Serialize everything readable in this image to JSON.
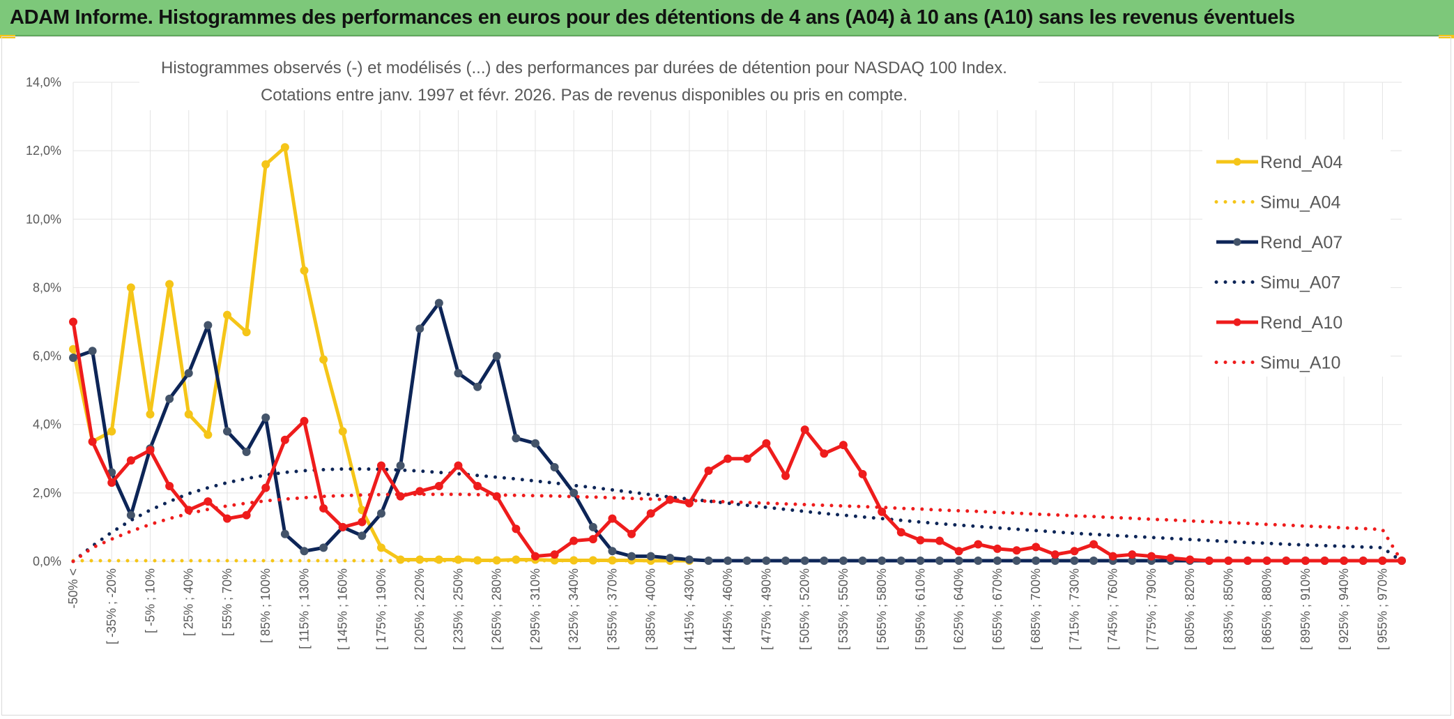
{
  "header": {
    "title": "ADAM Informe. Histogrammes des performances en euros pour des détentions de 4 ans (A04) à 10 ans (A10) sans les revenus éventuels"
  },
  "chart_data": {
    "type": "line",
    "subtitle": [
      "Histogrammes observés (-) et modélisés (...) des performances par durées de détention pour NASDAQ 100 Index.",
      "Cotations entre janv. 1997 et févr. 2026. Pas de revenus disponibles ou pris en compte."
    ],
    "ylim": [
      0,
      14
    ],
    "yticks": [
      "0,0%",
      "2,0%",
      "4,0%",
      "6,0%",
      "8,0%",
      "10,0%",
      "12,0%",
      "14,0%"
    ],
    "xticks": [
      "-50% <",
      "[ -35% ; -20%",
      "[ -5% ; 10%",
      "[ 25% ; 40%",
      "[ 55% ; 70%",
      "[ 85% ; 100%",
      "[ 115% ; 130%",
      "[ 145% ; 160%",
      "[ 175% ; 190%",
      "[ 205% ; 220%",
      "[ 235% ; 250%",
      "[ 265% ; 280%",
      "[ 295% ; 310%",
      "[ 325% ; 340%",
      "[ 355% ; 370%",
      "[ 385% ; 400%",
      "[ 415% ; 430%",
      "[ 445% ; 460%",
      "[ 475% ; 490%",
      "[ 505% ; 520%",
      "[ 535% ; 550%",
      "[ 565% ; 580%",
      "[ 595% ; 610%",
      "[ 625% ; 640%",
      "[ 655% ; 670%",
      "[ 685% ; 700%",
      "[ 715% ; 730%",
      "[ 745% ; 760%",
      "[ 775% ; 790%",
      "[ 805% ; 820%",
      "[ 835% ; 850%",
      "[ 865% ; 880%",
      "[ 895% ; 910%",
      "[ 925% ; 940%",
      "[ 955% ; 970%"
    ],
    "grid": true,
    "legend_position": "right",
    "series": [
      {
        "name": "Rend_A04",
        "style": "solid",
        "color": "#f5c518",
        "values": [
          6.2,
          3.5,
          3.8,
          8.0,
          4.3,
          8.1,
          4.3,
          3.7,
          7.2,
          6.7,
          11.6,
          12.1,
          8.5,
          5.9,
          3.8,
          1.5,
          0.4,
          0.05,
          0.05,
          0.05,
          0.05,
          0.03,
          0.03,
          0.05,
          0.05,
          0.03,
          0.03,
          0.03,
          0.03,
          0.03,
          0.02,
          0.02,
          0.02
        ]
      },
      {
        "name": "Simu_A04",
        "style": "dotted",
        "color": "#f5c518",
        "values": [
          0.02,
          0.02,
          0.02,
          0.02,
          0.02,
          0.02,
          0.02,
          0.02,
          0.02,
          0.02,
          0.02,
          0.02,
          0.02,
          0.02,
          0.02,
          0.02,
          0.02,
          0.02,
          0.02,
          0.02,
          0.02,
          0.02,
          0.02,
          0.02,
          0.02,
          0.02,
          0.02,
          0.02,
          0.02,
          0.02,
          0.02,
          0.02,
          0.02
        ]
      },
      {
        "name": "Rend_A07",
        "style": "solid",
        "color": "#0d2557",
        "values": [
          5.95,
          6.15,
          2.6,
          1.35,
          3.3,
          4.75,
          5.5,
          6.9,
          3.8,
          3.2,
          4.2,
          0.8,
          0.3,
          0.4,
          1.0,
          0.75,
          1.4,
          2.8,
          6.8,
          7.55,
          5.5,
          5.1,
          6.0,
          3.6,
          3.45,
          2.75,
          2.0,
          1.0,
          0.3,
          0.15,
          0.15,
          0.1,
          0.05,
          0.02,
          0.02,
          0.02,
          0.02,
          0.02,
          0.02,
          0.02,
          0.02,
          0.02,
          0.02,
          0.02,
          0.02,
          0.02,
          0.02,
          0.02,
          0.02,
          0.02,
          0.02,
          0.02,
          0.02,
          0.02,
          0.02,
          0.02,
          0.02,
          0.02,
          0.02,
          0.02,
          0.02,
          0.02,
          0.02,
          0.02,
          0.02,
          0.02,
          0.02,
          0.02,
          0.02,
          0.02
        ]
      },
      {
        "name": "Simu_A07",
        "style": "dotted",
        "color": "#0d2557",
        "values": [
          0.0,
          0.45,
          0.85,
          1.2,
          1.5,
          1.75,
          1.98,
          2.15,
          2.3,
          2.42,
          2.52,
          2.6,
          2.65,
          2.68,
          2.7,
          2.7,
          2.69,
          2.67,
          2.64,
          2.6,
          2.56,
          2.51,
          2.46,
          2.41,
          2.35,
          2.29,
          2.22,
          2.16,
          2.09,
          2.02,
          1.95,
          1.88,
          1.82,
          1.76,
          1.7,
          1.64,
          1.58,
          1.52,
          1.46,
          1.4,
          1.35,
          1.3,
          1.25,
          1.2,
          1.15,
          1.1,
          1.06,
          1.02,
          0.98,
          0.94,
          0.9,
          0.86,
          0.82,
          0.79,
          0.76,
          0.73,
          0.7,
          0.67,
          0.64,
          0.61,
          0.58,
          0.55,
          0.53,
          0.5,
          0.48,
          0.46,
          0.44,
          0.42,
          0.4,
          0.0
        ]
      },
      {
        "name": "Rend_A10",
        "style": "solid",
        "color": "#ee1c1c",
        "values": [
          7.0,
          3.5,
          2.3,
          2.95,
          3.25,
          2.2,
          1.5,
          1.75,
          1.25,
          1.35,
          2.15,
          3.55,
          4.1,
          1.55,
          1.0,
          1.15,
          2.8,
          1.9,
          2.05,
          2.2,
          2.8,
          2.2,
          1.9,
          0.95,
          0.15,
          0.2,
          0.6,
          0.65,
          1.25,
          0.8,
          1.4,
          1.8,
          1.7,
          2.65,
          3.0,
          3.0,
          3.45,
          2.5,
          3.85,
          3.15,
          3.4,
          2.55,
          1.45,
          0.85,
          0.62,
          0.6,
          0.3,
          0.5,
          0.37,
          0.32,
          0.42,
          0.2,
          0.3,
          0.5,
          0.15,
          0.2,
          0.15,
          0.1,
          0.05,
          0.02,
          0.02,
          0.02,
          0.02,
          0.02,
          0.02,
          0.02,
          0.02,
          0.02,
          0.02,
          0.02
        ]
      },
      {
        "name": "Simu_A10",
        "style": "dotted",
        "color": "#ee1c1c",
        "values": [
          0.0,
          0.4,
          0.65,
          0.88,
          1.08,
          1.25,
          1.4,
          1.52,
          1.62,
          1.7,
          1.77,
          1.82,
          1.86,
          1.9,
          1.92,
          1.94,
          1.95,
          1.96,
          1.96,
          1.96,
          1.96,
          1.95,
          1.94,
          1.93,
          1.92,
          1.91,
          1.89,
          1.88,
          1.86,
          1.84,
          1.82,
          1.8,
          1.78,
          1.76,
          1.74,
          1.72,
          1.7,
          1.68,
          1.66,
          1.64,
          1.62,
          1.6,
          1.58,
          1.55,
          1.53,
          1.5,
          1.48,
          1.46,
          1.43,
          1.41,
          1.38,
          1.36,
          1.33,
          1.31,
          1.28,
          1.26,
          1.23,
          1.21,
          1.18,
          1.16,
          1.13,
          1.11,
          1.08,
          1.06,
          1.03,
          1.01,
          0.98,
          0.96,
          0.93,
          0.0
        ]
      }
    ]
  }
}
